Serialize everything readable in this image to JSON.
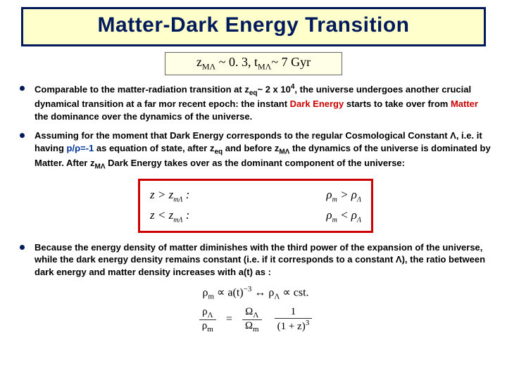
{
  "title": "Matter-Dark Energy Transition",
  "subtitle": {
    "z_label": "z",
    "z_sub": "MΛ",
    "z_val": " ~ 0. 3,",
    "t_label": "   t",
    "t_sub": "MΛ",
    "t_val": "~ 7 Gyr"
  },
  "bullets": {
    "b1a": "Comparable to the matter-radiation transition at  z",
    "b1a_sub": "eq",
    "b1a2": "~ 2 x 10",
    "b1a2_sup": "4",
    "b1a3": ", the universe undergoes another crucial dynamical transition at a far mor recent epoch:  the instant ",
    "b1_red": "Dark Energy",
    "b1a4": "  starts to take over from ",
    "b1_red2": "Matter",
    "b1a5": " the dominance over the dynamics of the universe.",
    "b2a": "Assuming for the moment that Dark Energy corresponds to the regular Cosmological Constant Λ, i.e. it  having ",
    "b2_blue": " p/ρ=-1 ",
    "b2b": " as equation of state, after z",
    "b2b_sub": "eq",
    "b2c": " and before  z",
    "b2c_sub": "MΛ",
    "b2d": " the dynamics of the universe is dominated by  Matter. After  z",
    "b2d_sub": "MΛ",
    "b2e": " Dark Energy takes over as the dominant component of the universe:",
    "b3": "Because the energy density of matter diminishes with the third power of the expansion of the universe, while the dark energy density remains constant (i.e. if it corresponds to a constant Λ), the ratio between dark energy and matter density increases with a(t) as :"
  },
  "eqbox": {
    "r1l": "z  >  z",
    "r1l_sub": "mΛ",
    "r1l2": "  :",
    "r1r": "ρ",
    "r1r_sub1": "m",
    "r1r2": " > ρ",
    "r1r_sub2": "Λ",
    "r2l": "z  <  z",
    "r2l_sub": "mΛ",
    "r2l2": "  :",
    "r2r": "ρ",
    "r2r_sub1": "m",
    "r2r2": " < ρ",
    "r2r_sub2": "Λ"
  },
  "math": {
    "line1_a": "ρ",
    "line1_a_sub": "m",
    "line1_b": " ∝ a(t)",
    "line1_b_sup": "−3",
    "line1_c": "   ↔   ρ",
    "line1_c_sub": "Λ",
    "line1_d": " ∝ cst.",
    "frac1_num_a": "ρ",
    "frac1_num_sub": "Λ",
    "frac1_den_a": "ρ",
    "frac1_den_sub": "m",
    "eq": " = ",
    "frac2_num_a": "Ω",
    "frac2_num_sub": "Λ",
    "frac2_den_a": "Ω",
    "frac2_den_sub": "m",
    "frac3_num": "1",
    "frac3_den_a": "(1 + z)",
    "frac3_den_sup": "3"
  }
}
